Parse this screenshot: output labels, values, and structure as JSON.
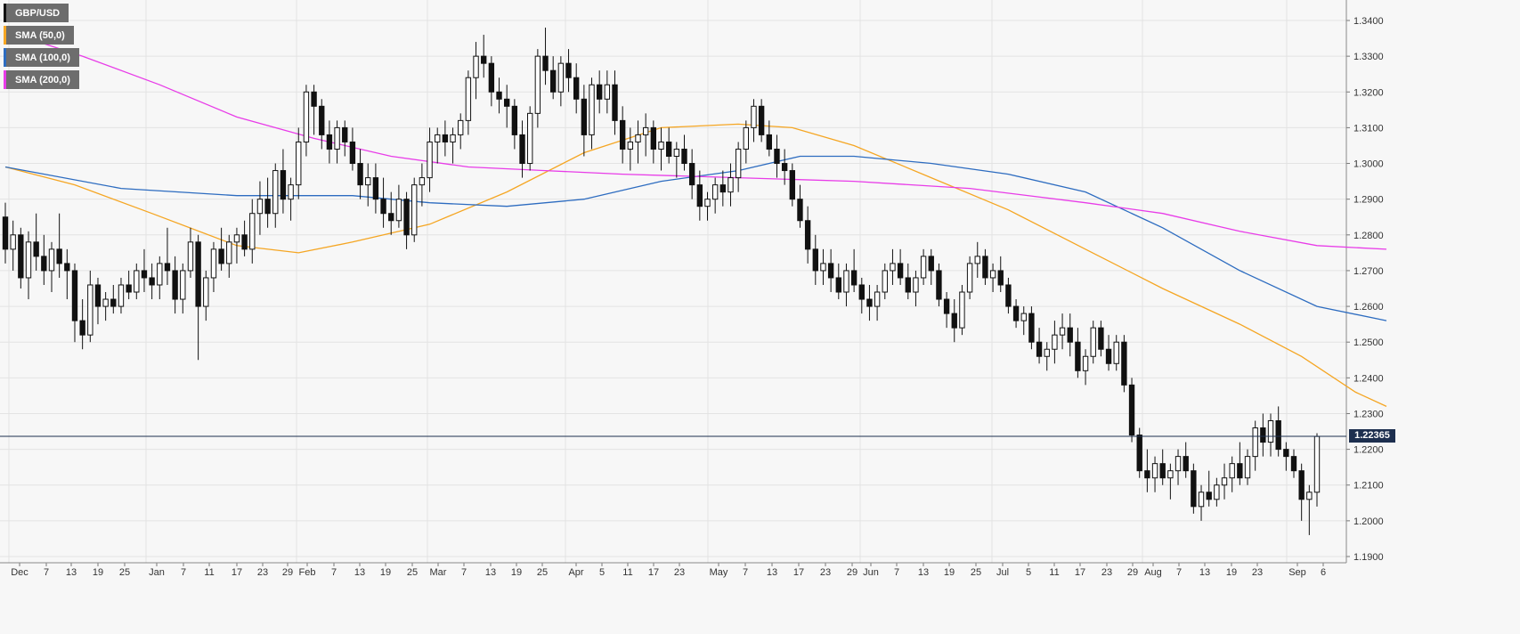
{
  "legend": [
    {
      "label": "GBP/USD",
      "color": "#111111"
    },
    {
      "label": "SMA (50,0)",
      "color": "#f5a623"
    },
    {
      "label": "SMA (100,0)",
      "color": "#2d6cc0"
    },
    {
      "label": "SMA (200,0)",
      "color": "#e83ce8"
    }
  ],
  "current_price": "1.22365",
  "chart_data": {
    "type": "candlestick",
    "symbol": "GBP/USD",
    "ylim": [
      1.19,
      1.345
    ],
    "y_ticks": [
      "1.1900",
      "1.2000",
      "1.2100",
      "1.2200",
      "1.2300",
      "1.2400",
      "1.2500",
      "1.2600",
      "1.2700",
      "1.2800",
      "1.2900",
      "1.3000",
      "1.3100",
      "1.3200",
      "1.3300",
      "1.3400"
    ],
    "x_ticks": [
      "Dec",
      "7",
      "13",
      "19",
      "25",
      "Jan",
      "7",
      "11",
      "17",
      "23",
      "29",
      "Feb",
      "7",
      "13",
      "19",
      "25",
      "Mar",
      "7",
      "13",
      "19",
      "25",
      "Apr",
      "5",
      "11",
      "17",
      "23",
      "May",
      "7",
      "13",
      "17",
      "23",
      "29",
      "Jun",
      "7",
      "13",
      "19",
      "25",
      "Jul",
      "5",
      "11",
      "17",
      "23",
      "29",
      "Aug",
      "7",
      "13",
      "19",
      "23",
      "Sep",
      "6"
    ],
    "current_price_level": 1.22365,
    "candles": [
      [
        1.285,
        1.289,
        1.272,
        1.276
      ],
      [
        1.276,
        1.284,
        1.27,
        1.28
      ],
      [
        1.28,
        1.282,
        1.265,
        1.268
      ],
      [
        1.268,
        1.281,
        1.262,
        1.278
      ],
      [
        1.278,
        1.286,
        1.27,
        1.274
      ],
      [
        1.274,
        1.28,
        1.266,
        1.27
      ],
      [
        1.27,
        1.278,
        1.264,
        1.276
      ],
      [
        1.276,
        1.286,
        1.268,
        1.272
      ],
      [
        1.272,
        1.276,
        1.262,
        1.27
      ],
      [
        1.27,
        1.272,
        1.25,
        1.256
      ],
      [
        1.256,
        1.262,
        1.248,
        1.252
      ],
      [
        1.252,
        1.27,
        1.25,
        1.266
      ],
      [
        1.266,
        1.268,
        1.255,
        1.26
      ],
      [
        1.26,
        1.264,
        1.256,
        1.262
      ],
      [
        1.262,
        1.266,
        1.258,
        1.26
      ],
      [
        1.26,
        1.268,
        1.258,
        1.266
      ],
      [
        1.266,
        1.27,
        1.262,
        1.264
      ],
      [
        1.264,
        1.272,
        1.262,
        1.27
      ],
      [
        1.27,
        1.276,
        1.264,
        1.268
      ],
      [
        1.268,
        1.272,
        1.262,
        1.266
      ],
      [
        1.266,
        1.274,
        1.262,
        1.272
      ],
      [
        1.272,
        1.282,
        1.266,
        1.27
      ],
      [
        1.27,
        1.274,
        1.258,
        1.262
      ],
      [
        1.262,
        1.272,
        1.258,
        1.27
      ],
      [
        1.27,
        1.282,
        1.268,
        1.278
      ],
      [
        1.278,
        1.28,
        1.245,
        1.26
      ],
      [
        1.26,
        1.27,
        1.256,
        1.268
      ],
      [
        1.268,
        1.278,
        1.264,
        1.276
      ],
      [
        1.276,
        1.282,
        1.27,
        1.272
      ],
      [
        1.272,
        1.28,
        1.268,
        1.278
      ],
      [
        1.278,
        1.282,
        1.272,
        1.28
      ],
      [
        1.28,
        1.284,
        1.274,
        1.276
      ],
      [
        1.276,
        1.29,
        1.272,
        1.286
      ],
      [
        1.286,
        1.295,
        1.28,
        1.29
      ],
      [
        1.29,
        1.296,
        1.282,
        1.286
      ],
      [
        1.286,
        1.3,
        1.282,
        1.298
      ],
      [
        1.298,
        1.304,
        1.286,
        1.29
      ],
      [
        1.29,
        1.296,
        1.284,
        1.294
      ],
      [
        1.294,
        1.31,
        1.29,
        1.306
      ],
      [
        1.306,
        1.322,
        1.302,
        1.32
      ],
      [
        1.32,
        1.322,
        1.308,
        1.316
      ],
      [
        1.316,
        1.318,
        1.304,
        1.308
      ],
      [
        1.308,
        1.312,
        1.3,
        1.304
      ],
      [
        1.304,
        1.312,
        1.3,
        1.31
      ],
      [
        1.31,
        1.312,
        1.302,
        1.306
      ],
      [
        1.306,
        1.31,
        1.298,
        1.3
      ],
      [
        1.3,
        1.304,
        1.29,
        1.294
      ],
      [
        1.294,
        1.3,
        1.288,
        1.296
      ],
      [
        1.296,
        1.3,
        1.286,
        1.29
      ],
      [
        1.29,
        1.296,
        1.282,
        1.286
      ],
      [
        1.286,
        1.292,
        1.28,
        1.284
      ],
      [
        1.284,
        1.294,
        1.282,
        1.29
      ],
      [
        1.29,
        1.292,
        1.276,
        1.28
      ],
      [
        1.28,
        1.296,
        1.278,
        1.294
      ],
      [
        1.294,
        1.3,
        1.288,
        1.296
      ],
      [
        1.296,
        1.31,
        1.292,
        1.306
      ],
      [
        1.306,
        1.31,
        1.3,
        1.308
      ],
      [
        1.308,
        1.312,
        1.302,
        1.306
      ],
      [
        1.306,
        1.31,
        1.3,
        1.308
      ],
      [
        1.308,
        1.314,
        1.304,
        1.312
      ],
      [
        1.312,
        1.326,
        1.308,
        1.324
      ],
      [
        1.324,
        1.334,
        1.318,
        1.33
      ],
      [
        1.33,
        1.336,
        1.324,
        1.328
      ],
      [
        1.328,
        1.33,
        1.316,
        1.32
      ],
      [
        1.32,
        1.324,
        1.314,
        1.318
      ],
      [
        1.318,
        1.322,
        1.31,
        1.316
      ],
      [
        1.316,
        1.318,
        1.304,
        1.308
      ],
      [
        1.308,
        1.312,
        1.296,
        1.3
      ],
      [
        1.3,
        1.316,
        1.298,
        1.314
      ],
      [
        1.314,
        1.332,
        1.31,
        1.33
      ],
      [
        1.33,
        1.338,
        1.322,
        1.326
      ],
      [
        1.326,
        1.33,
        1.318,
        1.32
      ],
      [
        1.32,
        1.33,
        1.316,
        1.328
      ],
      [
        1.328,
        1.332,
        1.32,
        1.324
      ],
      [
        1.324,
        1.328,
        1.314,
        1.318
      ],
      [
        1.318,
        1.322,
        1.302,
        1.308
      ],
      [
        1.308,
        1.324,
        1.304,
        1.322
      ],
      [
        1.322,
        1.326,
        1.314,
        1.318
      ],
      [
        1.318,
        1.326,
        1.314,
        1.322
      ],
      [
        1.322,
        1.326,
        1.308,
        1.312
      ],
      [
        1.312,
        1.316,
        1.3,
        1.304
      ],
      [
        1.304,
        1.31,
        1.298,
        1.306
      ],
      [
        1.306,
        1.312,
        1.3,
        1.308
      ],
      [
        1.308,
        1.314,
        1.302,
        1.31
      ],
      [
        1.31,
        1.312,
        1.3,
        1.304
      ],
      [
        1.304,
        1.31,
        1.298,
        1.306
      ],
      [
        1.306,
        1.31,
        1.3,
        1.302
      ],
      [
        1.302,
        1.306,
        1.296,
        1.304
      ],
      [
        1.304,
        1.308,
        1.298,
        1.3
      ],
      [
        1.3,
        1.304,
        1.29,
        1.294
      ],
      [
        1.294,
        1.298,
        1.284,
        1.288
      ],
      [
        1.288,
        1.292,
        1.284,
        1.29
      ],
      [
        1.29,
        1.296,
        1.286,
        1.294
      ],
      [
        1.294,
        1.298,
        1.288,
        1.292
      ],
      [
        1.292,
        1.3,
        1.288,
        1.296
      ],
      [
        1.296,
        1.306,
        1.292,
        1.304
      ],
      [
        1.304,
        1.312,
        1.3,
        1.31
      ],
      [
        1.31,
        1.318,
        1.306,
        1.316
      ],
      [
        1.316,
        1.318,
        1.306,
        1.308
      ],
      [
        1.308,
        1.312,
        1.302,
        1.304
      ],
      [
        1.304,
        1.308,
        1.296,
        1.3
      ],
      [
        1.3,
        1.304,
        1.294,
        1.298
      ],
      [
        1.298,
        1.3,
        1.288,
        1.29
      ],
      [
        1.29,
        1.294,
        1.282,
        1.284
      ],
      [
        1.284,
        1.288,
        1.272,
        1.276
      ],
      [
        1.276,
        1.28,
        1.266,
        1.27
      ],
      [
        1.27,
        1.276,
        1.266,
        1.272
      ],
      [
        1.272,
        1.276,
        1.264,
        1.268
      ],
      [
        1.268,
        1.272,
        1.262,
        1.264
      ],
      [
        1.264,
        1.272,
        1.26,
        1.27
      ],
      [
        1.27,
        1.276,
        1.264,
        1.266
      ],
      [
        1.266,
        1.268,
        1.258,
        1.262
      ],
      [
        1.262,
        1.266,
        1.256,
        1.26
      ],
      [
        1.26,
        1.266,
        1.256,
        1.264
      ],
      [
        1.264,
        1.272,
        1.262,
        1.27
      ],
      [
        1.27,
        1.276,
        1.266,
        1.272
      ],
      [
        1.272,
        1.276,
        1.266,
        1.268
      ],
      [
        1.268,
        1.272,
        1.262,
        1.264
      ],
      [
        1.264,
        1.27,
        1.26,
        1.268
      ],
      [
        1.268,
        1.276,
        1.266,
        1.274
      ],
      [
        1.274,
        1.276,
        1.266,
        1.27
      ],
      [
        1.27,
        1.272,
        1.26,
        1.262
      ],
      [
        1.262,
        1.264,
        1.254,
        1.258
      ],
      [
        1.258,
        1.262,
        1.25,
        1.254
      ],
      [
        1.254,
        1.266,
        1.252,
        1.264
      ],
      [
        1.264,
        1.274,
        1.262,
        1.272
      ],
      [
        1.272,
        1.278,
        1.268,
        1.274
      ],
      [
        1.274,
        1.276,
        1.266,
        1.268
      ],
      [
        1.268,
        1.272,
        1.264,
        1.27
      ],
      [
        1.27,
        1.274,
        1.264,
        1.266
      ],
      [
        1.266,
        1.268,
        1.258,
        1.26
      ],
      [
        1.26,
        1.262,
        1.254,
        1.256
      ],
      [
        1.256,
        1.26,
        1.252,
        1.258
      ],
      [
        1.258,
        1.26,
        1.248,
        1.25
      ],
      [
        1.25,
        1.254,
        1.244,
        1.246
      ],
      [
        1.246,
        1.25,
        1.242,
        1.248
      ],
      [
        1.248,
        1.256,
        1.244,
        1.252
      ],
      [
        1.252,
        1.258,
        1.248,
        1.254
      ],
      [
        1.254,
        1.258,
        1.246,
        1.25
      ],
      [
        1.25,
        1.254,
        1.24,
        1.242
      ],
      [
        1.242,
        1.248,
        1.238,
        1.246
      ],
      [
        1.246,
        1.256,
        1.244,
        1.254
      ],
      [
        1.254,
        1.256,
        1.246,
        1.248
      ],
      [
        1.248,
        1.252,
        1.242,
        1.244
      ],
      [
        1.244,
        1.252,
        1.242,
        1.25
      ],
      [
        1.25,
        1.252,
        1.236,
        1.238
      ],
      [
        1.238,
        1.24,
        1.222,
        1.224
      ],
      [
        1.224,
        1.226,
        1.212,
        1.214
      ],
      [
        1.214,
        1.22,
        1.208,
        1.212
      ],
      [
        1.212,
        1.218,
        1.208,
        1.216
      ],
      [
        1.216,
        1.22,
        1.21,
        1.212
      ],
      [
        1.212,
        1.216,
        1.206,
        1.214
      ],
      [
        1.214,
        1.22,
        1.21,
        1.218
      ],
      [
        1.218,
        1.222,
        1.212,
        1.214
      ],
      [
        1.214,
        1.216,
        1.202,
        1.204
      ],
      [
        1.204,
        1.21,
        1.2,
        1.208
      ],
      [
        1.208,
        1.214,
        1.204,
        1.206
      ],
      [
        1.206,
        1.212,
        1.204,
        1.21
      ],
      [
        1.21,
        1.216,
        1.206,
        1.212
      ],
      [
        1.212,
        1.218,
        1.208,
        1.216
      ],
      [
        1.216,
        1.222,
        1.21,
        1.212
      ],
      [
        1.212,
        1.22,
        1.21,
        1.218
      ],
      [
        1.218,
        1.228,
        1.214,
        1.226
      ],
      [
        1.226,
        1.23,
        1.218,
        1.222
      ],
      [
        1.222,
        1.23,
        1.218,
        1.228
      ],
      [
        1.228,
        1.232,
        1.218,
        1.22
      ],
      [
        1.22,
        1.222,
        1.214,
        1.218
      ],
      [
        1.218,
        1.22,
        1.212,
        1.214
      ],
      [
        1.214,
        1.216,
        1.2,
        1.206
      ],
      [
        1.206,
        1.21,
        1.196,
        1.208
      ],
      [
        1.208,
        1.2245,
        1.204,
        1.2236
      ]
    ],
    "sma": [
      {
        "name": "SMA (50,0)",
        "color": "#f5a623",
        "points": [
          [
            0,
            1.299
          ],
          [
            9,
            1.294
          ],
          [
            19,
            1.286
          ],
          [
            30,
            1.277
          ],
          [
            38,
            1.275
          ],
          [
            45,
            1.278
          ],
          [
            55,
            1.283
          ],
          [
            65,
            1.292
          ],
          [
            75,
            1.303
          ],
          [
            85,
            1.31
          ],
          [
            95,
            1.311
          ],
          [
            102,
            1.31
          ],
          [
            110,
            1.305
          ],
          [
            120,
            1.296
          ],
          [
            130,
            1.287
          ],
          [
            140,
            1.276
          ],
          [
            150,
            1.265
          ],
          [
            160,
            1.255
          ],
          [
            168,
            1.246
          ],
          [
            175,
            1.236
          ],
          [
            179,
            1.232
          ]
        ]
      },
      {
        "name": "SMA (100,0)",
        "color": "#2d6cc0",
        "points": [
          [
            0,
            1.299
          ],
          [
            15,
            1.293
          ],
          [
            30,
            1.291
          ],
          [
            45,
            1.291
          ],
          [
            55,
            1.289
          ],
          [
            65,
            1.288
          ],
          [
            75,
            1.29
          ],
          [
            85,
            1.295
          ],
          [
            95,
            1.298
          ],
          [
            103,
            1.302
          ],
          [
            110,
            1.302
          ],
          [
            120,
            1.3
          ],
          [
            130,
            1.297
          ],
          [
            140,
            1.292
          ],
          [
            150,
            1.282
          ],
          [
            160,
            1.27
          ],
          [
            170,
            1.26
          ],
          [
            179,
            1.256
          ]
        ]
      },
      {
        "name": "SMA (200,0)",
        "color": "#e83ce8",
        "points": [
          [
            0,
            1.337
          ],
          [
            10,
            1.33
          ],
          [
            20,
            1.322
          ],
          [
            30,
            1.313
          ],
          [
            40,
            1.307
          ],
          [
            50,
            1.302
          ],
          [
            60,
            1.299
          ],
          [
            70,
            1.298
          ],
          [
            80,
            1.297
          ],
          [
            95,
            1.296
          ],
          [
            110,
            1.295
          ],
          [
            125,
            1.293
          ],
          [
            140,
            1.289
          ],
          [
            150,
            1.286
          ],
          [
            160,
            1.281
          ],
          [
            170,
            1.277
          ],
          [
            179,
            1.276
          ]
        ]
      }
    ]
  }
}
